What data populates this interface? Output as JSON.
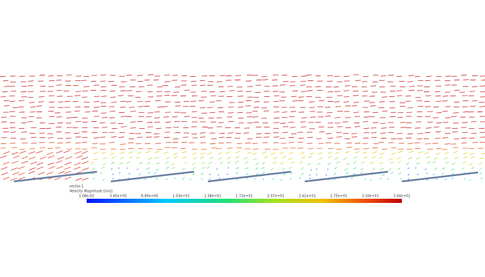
{
  "legend": {
    "title": "vector-1",
    "quantity": "Velocity Magnitude [m/s]",
    "ticks": [
      "1.08e-02",
      "3.45e+00",
      "6.89e+00",
      "1.03e+01",
      "1.38e+01",
      "1.72e+01",
      "2.07e+01",
      "2.41e+01",
      "2.75e+01",
      "3.10e+01",
      "3.44e+01"
    ]
  }
}
